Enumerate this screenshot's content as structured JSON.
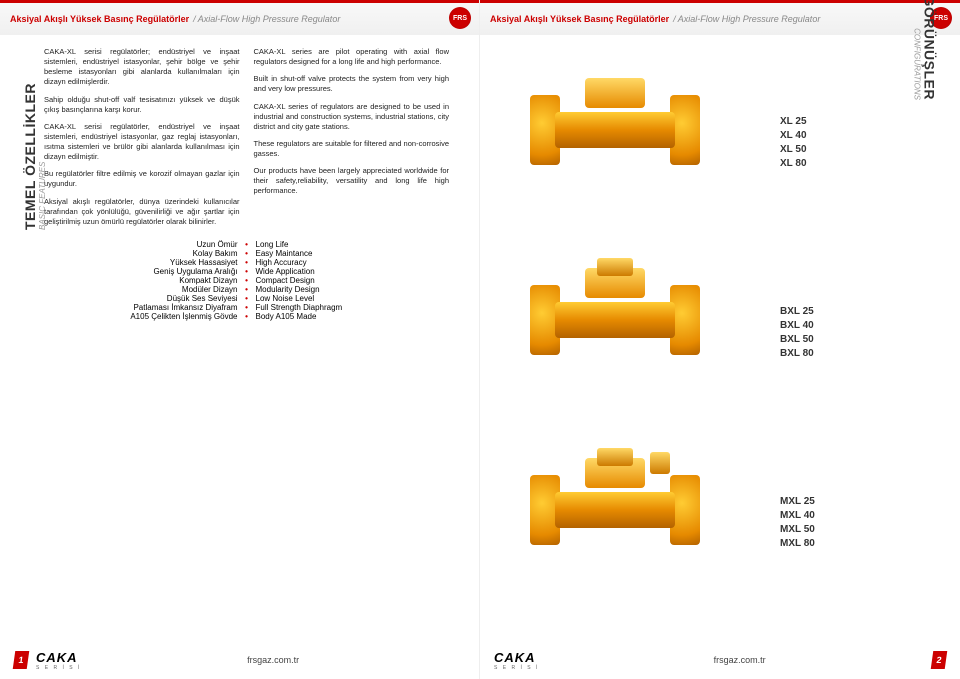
{
  "header": {
    "title_tr": "Aksiyal Akışlı Yüksek Basınç Regülatörler",
    "title_en": "/ Axial-Flow High Pressure Regulator"
  },
  "sideLeft": {
    "main": "TEMEL ÖZELLİKLER",
    "sub": "BASIC FEATURES"
  },
  "sideRight": {
    "main": "GÖRÜNÜŞLER",
    "sub": "CONFIGURATIONS"
  },
  "leftCol": {
    "p1": "CAKA-XL serisi regülatörler; endüstriyel ve inşaat sistemleri, endüstriyel istasyonlar, şehir bölge ve şehir besleme istasyonları gibi alanlarda kullanılmaları için dizayn edilmişlerdir.",
    "p2": "Sahip olduğu shut-off valf tesisatınızı yüksek ve düşük çıkış basınçlarına karşı korur.",
    "p3": "CAKA-XL serisi regülatörler, endüstriyel ve inşaat sistemleri, endüstriyel istasyonlar, gaz reglaj istasyonları, ısıtma sistemleri ve brülör gibi alanlarda kullanılması için dizayn edilmiştir.",
    "p4": "Bu regülatörler filtre edilmiş ve korozif olmayan gazlar için uygundur.",
    "p5": "Aksiyal akışlı regülatörler, dünya üzerindeki kullanıcılar tarafından çok yönlülüğü, güvenilirliği ve ağır şartlar için geliştirilmiş uzun ömürlü regülatörler olarak bilinirler."
  },
  "rightCol": {
    "p1": "CAKA-XL series are pilot operating with axial flow regulators designed for a long life and high performance.",
    "p2": "Built in shut-off valve protects the system from very high and very low pressures.",
    "p3": "CAKA-XL series of regulators are designed to be used in industrial and construction systems, industrial stations, city district and city gate stations.",
    "p4": "These regulators are suitable for filtered and non-corrosive gasses.",
    "p5": "Our products have been largely appreciated worldwide for their safety,reliability, versatility and long life high performance."
  },
  "bullets": [
    {
      "tr": "Uzun Ömür",
      "en": "Long Life"
    },
    {
      "tr": "Kolay Bakım",
      "en": "Easy Maintance"
    },
    {
      "tr": "Yüksek Hassasiyet",
      "en": "High Accuracy"
    },
    {
      "tr": "Geniş Uygulama Aralığı",
      "en": "Wide Application"
    },
    {
      "tr": "Kompakt Dizayn",
      "en": "Compact Design"
    },
    {
      "tr": "Modüler Dizayn",
      "en": "Modularity Design"
    },
    {
      "tr": "Düşük Ses Seviyesi",
      "en": "Low Noise Level"
    },
    {
      "tr": "Patlaması İmkansız Diyafram",
      "en": "Full Strength Diaphragm"
    },
    {
      "tr": "A105 Çelikten İşlenmiş Gövde",
      "en": "Body A105 Made"
    }
  ],
  "configs": {
    "xl": [
      "XL 25",
      "XL 40",
      "XL 50",
      "XL 80"
    ],
    "bxl": [
      "BXL 25",
      "BXL 40",
      "BXL 50",
      "BXL 80"
    ],
    "mxl": [
      "MXL 25",
      "MXL 40",
      "MXL 50",
      "MXL 80"
    ]
  },
  "footer": {
    "brand": "CAKA",
    "brandSub": "S E R İ S İ",
    "url": "frsgaz.com.tr",
    "pageLeft": "1",
    "pageRight": "2"
  },
  "logoText": "FRS"
}
